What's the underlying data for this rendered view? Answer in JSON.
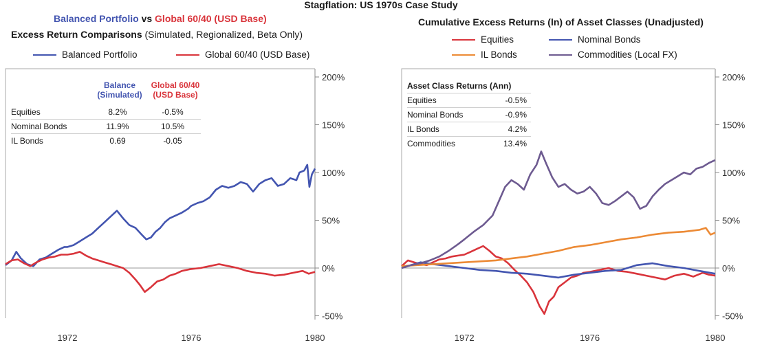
{
  "figure_title": "Stagflation: US 1970s Case Study",
  "colors": {
    "balanced": "#4355b0",
    "global": "#d9343b",
    "equities": "#d9343b",
    "nominal": "#4355b0",
    "il": "#ec8a35",
    "commodities": "#6d5a90",
    "axis": "#888888"
  },
  "left": {
    "title_part1": "Balanced Portfolio",
    "title_vs": " vs ",
    "title_part2": "Global 60/40 (USD Base)",
    "subtitle_bold": "Excess Return Comparisons",
    "subtitle_rest": " (Simulated, Regionalized, Beta Only)",
    "legend": [
      "Balanced Portfolio",
      "Global 60/40 (USD Base)"
    ],
    "table": {
      "col1_line1": "Balance",
      "col1_line2": "(Simulated)",
      "col2_line1": "Global 60/40",
      "col2_line2": "(USD Base)",
      "rows": [
        {
          "label": "Equities",
          "v1": "8.2%",
          "v2": "-0.5%"
        },
        {
          "label": "Nominal Bonds",
          "v1": "11.9%",
          "v2": "10.5%"
        },
        {
          "label": "IL Bonds",
          "v1": "0.69",
          "v2": "-0.05"
        }
      ]
    }
  },
  "right": {
    "title": "Cumulative Excess Returns (ln) of Asset Classes (Unadjusted)",
    "legend": [
      "Equities",
      "Nominal Bonds",
      "IL Bonds",
      "Commodities (Local FX)"
    ],
    "table": {
      "header": "Asset Class Returns (Ann)",
      "rows": [
        {
          "label": "Equities",
          "value": "-0.5%"
        },
        {
          "label": "Nominal Bonds",
          "value": "-0.9%"
        },
        {
          "label": "IL Bonds",
          "value": "4.2%"
        },
        {
          "label": "Commodities",
          "value": "13.4%"
        }
      ]
    }
  },
  "chart_data": [
    {
      "type": "line",
      "xlim": [
        1970.0,
        1980.0
      ],
      "ylim": [
        -50,
        200
      ],
      "y_ticks": [
        "200%",
        "150%",
        "100%",
        "50%",
        "0%",
        "-50%"
      ],
      "x_ticks": [
        "1972",
        "1976",
        "1980"
      ],
      "x_tick_values": [
        1972,
        1976,
        1980
      ],
      "series": [
        {
          "name": "Balanced Portfolio",
          "color": "#4355b0",
          "x": [
            1970.0,
            1970.2,
            1970.35,
            1970.5,
            1970.7,
            1970.9,
            1971.1,
            1971.3,
            1971.5,
            1971.7,
            1971.9,
            1972.0,
            1972.2,
            1972.4,
            1972.6,
            1972.8,
            1973.0,
            1973.2,
            1973.4,
            1973.6,
            1973.8,
            1974.0,
            1974.2,
            1974.4,
            1974.55,
            1974.7,
            1974.85,
            1975.0,
            1975.15,
            1975.3,
            1975.5,
            1975.7,
            1975.9,
            1976.0,
            1976.2,
            1976.4,
            1976.6,
            1976.8,
            1977.0,
            1977.2,
            1977.4,
            1977.6,
            1977.8,
            1978.0,
            1978.2,
            1978.4,
            1978.6,
            1978.8,
            1979.0,
            1979.2,
            1979.4,
            1979.5,
            1979.65,
            1979.75,
            1979.82,
            1979.9,
            1980.0
          ],
          "y": [
            3,
            8,
            17,
            10,
            4,
            2,
            9,
            11,
            15,
            19,
            22,
            22,
            24,
            28,
            32,
            36,
            42,
            48,
            54,
            60,
            52,
            45,
            42,
            35,
            30,
            32,
            38,
            42,
            48,
            52,
            55,
            58,
            62,
            65,
            68,
            70,
            74,
            82,
            86,
            84,
            86,
            90,
            88,
            80,
            88,
            92,
            94,
            86,
            88,
            94,
            92,
            100,
            102,
            108,
            85,
            98,
            104
          ]
        },
        {
          "name": "Global 60/40 (USD Base)",
          "color": "#d9343b",
          "x": [
            1970.0,
            1970.2,
            1970.4,
            1970.6,
            1970.8,
            1971.0,
            1971.2,
            1971.4,
            1971.6,
            1971.8,
            1972.0,
            1972.2,
            1972.4,
            1972.6,
            1972.8,
            1973.0,
            1973.2,
            1973.4,
            1973.6,
            1973.8,
            1974.0,
            1974.2,
            1974.35,
            1974.5,
            1974.7,
            1974.9,
            1975.1,
            1975.3,
            1975.5,
            1975.7,
            1976.0,
            1976.3,
            1976.6,
            1976.9,
            1977.2,
            1977.5,
            1977.8,
            1978.1,
            1978.4,
            1978.7,
            1979.0,
            1979.3,
            1979.6,
            1979.8,
            1979.9,
            1980.0
          ],
          "y": [
            4,
            8,
            9,
            5,
            2,
            6,
            9,
            11,
            12,
            14,
            14,
            15,
            17,
            13,
            10,
            8,
            6,
            4,
            2,
            0,
            -5,
            -12,
            -18,
            -25,
            -20,
            -14,
            -12,
            -8,
            -6,
            -3,
            -1,
            0,
            2,
            4,
            2,
            0,
            -3,
            -5,
            -6,
            -8,
            -7,
            -5,
            -3,
            -6,
            -5,
            -4
          ]
        }
      ]
    },
    {
      "type": "line",
      "xlim": [
        1970.0,
        1980.0
      ],
      "ylim": [
        -50,
        200
      ],
      "y_ticks": [
        "200%",
        "150%",
        "100%",
        "50%",
        "0%",
        "-50%"
      ],
      "x_ticks": [
        "1972",
        "1976",
        "1980"
      ],
      "x_tick_values": [
        1972,
        1976,
        1980
      ],
      "series": [
        {
          "name": "Equities",
          "color": "#d9343b",
          "x": [
            1970.0,
            1970.2,
            1970.4,
            1970.6,
            1970.8,
            1971.0,
            1971.2,
            1971.4,
            1971.6,
            1971.8,
            1972.0,
            1972.2,
            1972.4,
            1972.6,
            1972.8,
            1973.0,
            1973.2,
            1973.4,
            1973.6,
            1973.8,
            1974.0,
            1974.2,
            1974.4,
            1974.55,
            1974.7,
            1974.85,
            1975.0,
            1975.2,
            1975.4,
            1975.6,
            1975.8,
            1976.0,
            1976.3,
            1976.6,
            1976.9,
            1977.2,
            1977.5,
            1977.8,
            1978.1,
            1978.4,
            1978.7,
            1979.0,
            1979.3,
            1979.6,
            1979.8,
            1980.0
          ],
          "y": [
            2,
            8,
            6,
            4,
            3,
            6,
            9,
            10,
            12,
            13,
            14,
            17,
            20,
            23,
            18,
            12,
            10,
            5,
            -2,
            -8,
            -15,
            -25,
            -40,
            -48,
            -35,
            -30,
            -20,
            -15,
            -10,
            -8,
            -5,
            -4,
            -2,
            0,
            -3,
            -4,
            -6,
            -8,
            -10,
            -12,
            -8,
            -6,
            -9,
            -5,
            -7,
            -8
          ]
        },
        {
          "name": "Nominal Bonds",
          "color": "#4355b0",
          "x": [
            1970.0,
            1970.3,
            1970.6,
            1971.0,
            1971.5,
            1972.0,
            1972.5,
            1973.0,
            1973.5,
            1974.0,
            1974.5,
            1975.0,
            1975.5,
            1976.0,
            1976.5,
            1977.0,
            1977.5,
            1978.0,
            1978.5,
            1979.0,
            1979.5,
            1980.0
          ],
          "y": [
            0,
            3,
            6,
            4,
            2,
            0,
            -2,
            -3,
            -5,
            -6,
            -8,
            -10,
            -7,
            -5,
            -3,
            -2,
            3,
            5,
            2,
            0,
            -3,
            -6
          ]
        },
        {
          "name": "IL Bonds",
          "color": "#ec8a35",
          "x": [
            1970.0,
            1970.5,
            1971.0,
            1971.5,
            1972.0,
            1972.5,
            1973.0,
            1973.5,
            1974.0,
            1974.5,
            1975.0,
            1975.5,
            1976.0,
            1976.5,
            1977.0,
            1977.5,
            1978.0,
            1978.5,
            1979.0,
            1979.5,
            1979.7,
            1979.85,
            1980.0
          ],
          "y": [
            2,
            3,
            4,
            5,
            6,
            7,
            8,
            10,
            12,
            15,
            18,
            22,
            24,
            27,
            30,
            32,
            35,
            37,
            38,
            40,
            42,
            35,
            37
          ]
        },
        {
          "name": "Commodities (Local FX)",
          "color": "#6d5a90",
          "x": [
            1970.0,
            1970.3,
            1970.6,
            1970.9,
            1971.2,
            1971.5,
            1971.8,
            1972.0,
            1972.3,
            1972.6,
            1972.9,
            1973.1,
            1973.3,
            1973.5,
            1973.7,
            1973.9,
            1974.1,
            1974.3,
            1974.45,
            1974.6,
            1974.8,
            1975.0,
            1975.2,
            1975.4,
            1975.6,
            1975.8,
            1976.0,
            1976.2,
            1976.4,
            1976.6,
            1976.8,
            1977.0,
            1977.2,
            1977.4,
            1977.6,
            1977.8,
            1978.0,
            1978.2,
            1978.4,
            1978.6,
            1978.8,
            1979.0,
            1979.2,
            1979.4,
            1979.6,
            1979.8,
            1980.0
          ],
          "y": [
            0,
            3,
            5,
            8,
            12,
            18,
            25,
            30,
            38,
            45,
            55,
            70,
            85,
            92,
            88,
            82,
            98,
            108,
            122,
            110,
            95,
            85,
            88,
            82,
            78,
            80,
            85,
            78,
            68,
            66,
            70,
            75,
            80,
            74,
            62,
            65,
            75,
            82,
            88,
            92,
            96,
            100,
            98,
            104,
            106,
            110,
            113
          ]
        }
      ]
    }
  ]
}
